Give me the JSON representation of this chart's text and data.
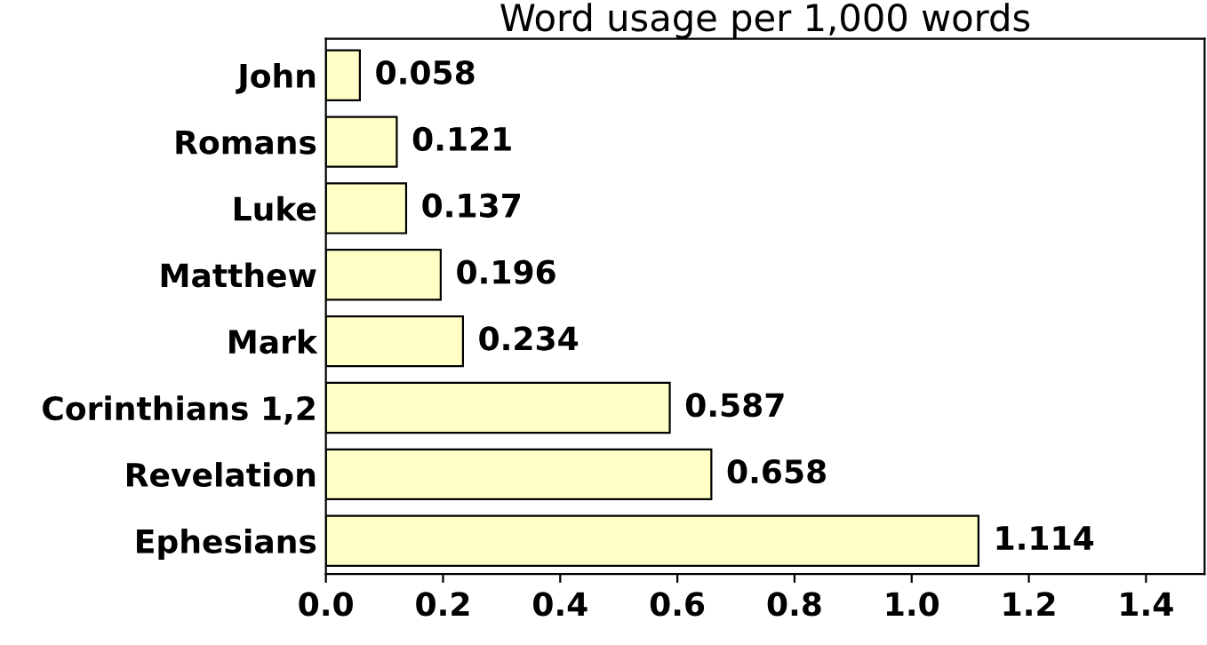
{
  "chart_data": {
    "type": "bar",
    "orientation": "horizontal",
    "title": "Word usage per 1,000 words",
    "categories": [
      "John",
      "Romans",
      "Luke",
      "Matthew",
      "Mark",
      "Corinthians 1,2",
      "Revelation",
      "Ephesians"
    ],
    "values": [
      0.058,
      0.121,
      0.137,
      0.196,
      0.234,
      0.587,
      0.658,
      1.114
    ],
    "color": "#ffffc6",
    "xlim": [
      0,
      1.5
    ],
    "xticks": [
      {
        "value": 0,
        "label": "0.0"
      },
      {
        "value": 0.2,
        "label": "0.2"
      },
      {
        "value": 0.4,
        "label": "0.4"
      },
      {
        "value": 0.6,
        "label": "0.6"
      },
      {
        "value": 0.8,
        "label": "0.8"
      },
      {
        "value": 1.0,
        "label": "1.0"
      },
      {
        "value": 1.2,
        "label": "1.2"
      },
      {
        "value": 1.4,
        "label": "1.4"
      }
    ],
    "data_labels": true,
    "grid": false
  }
}
